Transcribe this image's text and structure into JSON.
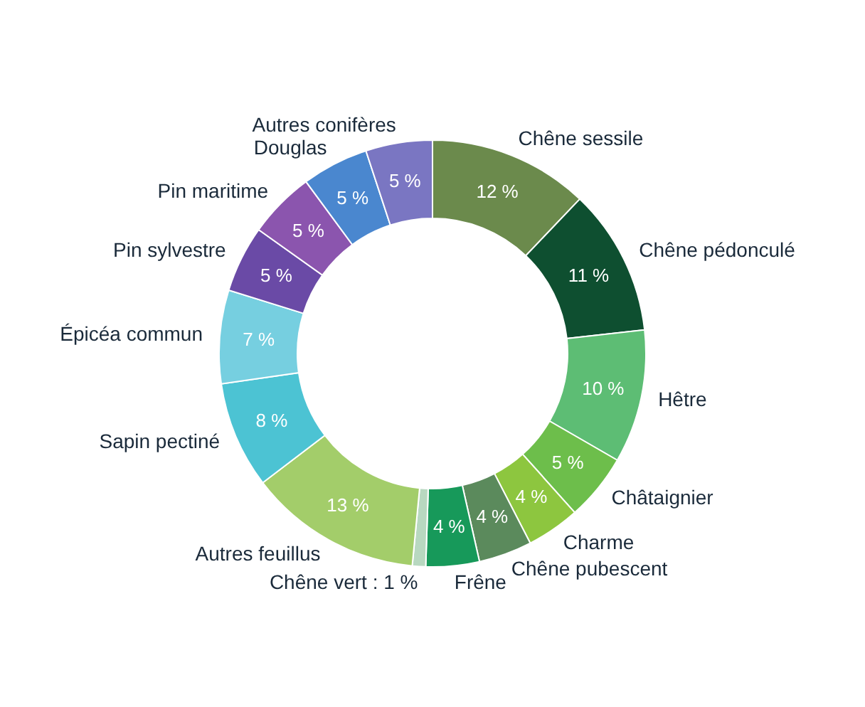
{
  "chart_data": {
    "type": "donut",
    "categories": [
      "Chêne sessile",
      "Chêne pédonculé",
      "Hêtre",
      "Châtaignier",
      "Charme",
      "Chêne pubescent",
      "Frêne",
      "Chêne vert : 1 %",
      "Autres feuillus",
      "Sapin pectiné",
      "Épicéa commun",
      "Pin sylvestre",
      "Pin maritime",
      "Douglas",
      "Autres conifères"
    ],
    "values": [
      12,
      11,
      10,
      5,
      4,
      4,
      4,
      1,
      13,
      8,
      7,
      5,
      5,
      5,
      5
    ],
    "value_labels": [
      "12 %",
      "11 %",
      "10 %",
      "5 %",
      "4 %",
      "4 %",
      "4 %",
      null,
      "13 %",
      "8 %",
      "7 %",
      "5 %",
      "5 %",
      "5 %",
      "5 %"
    ],
    "colors": [
      "#6b8a4c",
      "#0e4f30",
      "#5dbd74",
      "#6dbe4b",
      "#8dc63f",
      "#5b8a5c",
      "#17995a",
      "#b8d8c0",
      "#a3cd6a",
      "#4cc3d3",
      "#76cfe0",
      "#6a4aa6",
      "#8b55ae",
      "#4a87cf",
      "#7a76c2"
    ]
  }
}
